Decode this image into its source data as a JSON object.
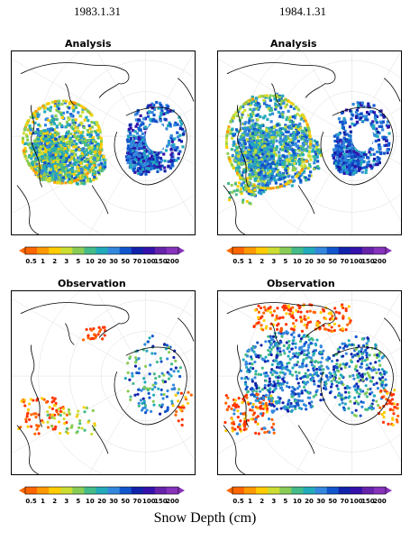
{
  "columns": [
    {
      "date": "1983.1.31"
    },
    {
      "date": "1984.1.31"
    }
  ],
  "rows": [
    {
      "title": "Analysis"
    },
    {
      "title": "Observation"
    }
  ],
  "colorbar": {
    "ticks": [
      "0.5",
      "1",
      "2",
      "3",
      "5",
      "10",
      "20",
      "30",
      "50",
      "70",
      "100",
      "150",
      "200"
    ],
    "colors": [
      "#ffffff",
      "#ff6600",
      "#ff9900",
      "#ffcc00",
      "#ccdd33",
      "#88cc55",
      "#44bb88",
      "#22aabb",
      "#3388dd",
      "#1155cc",
      "#1122aa",
      "#3311aa",
      "#6622aa",
      "#8833bb"
    ]
  },
  "footer": "Snow Depth (cm)"
}
